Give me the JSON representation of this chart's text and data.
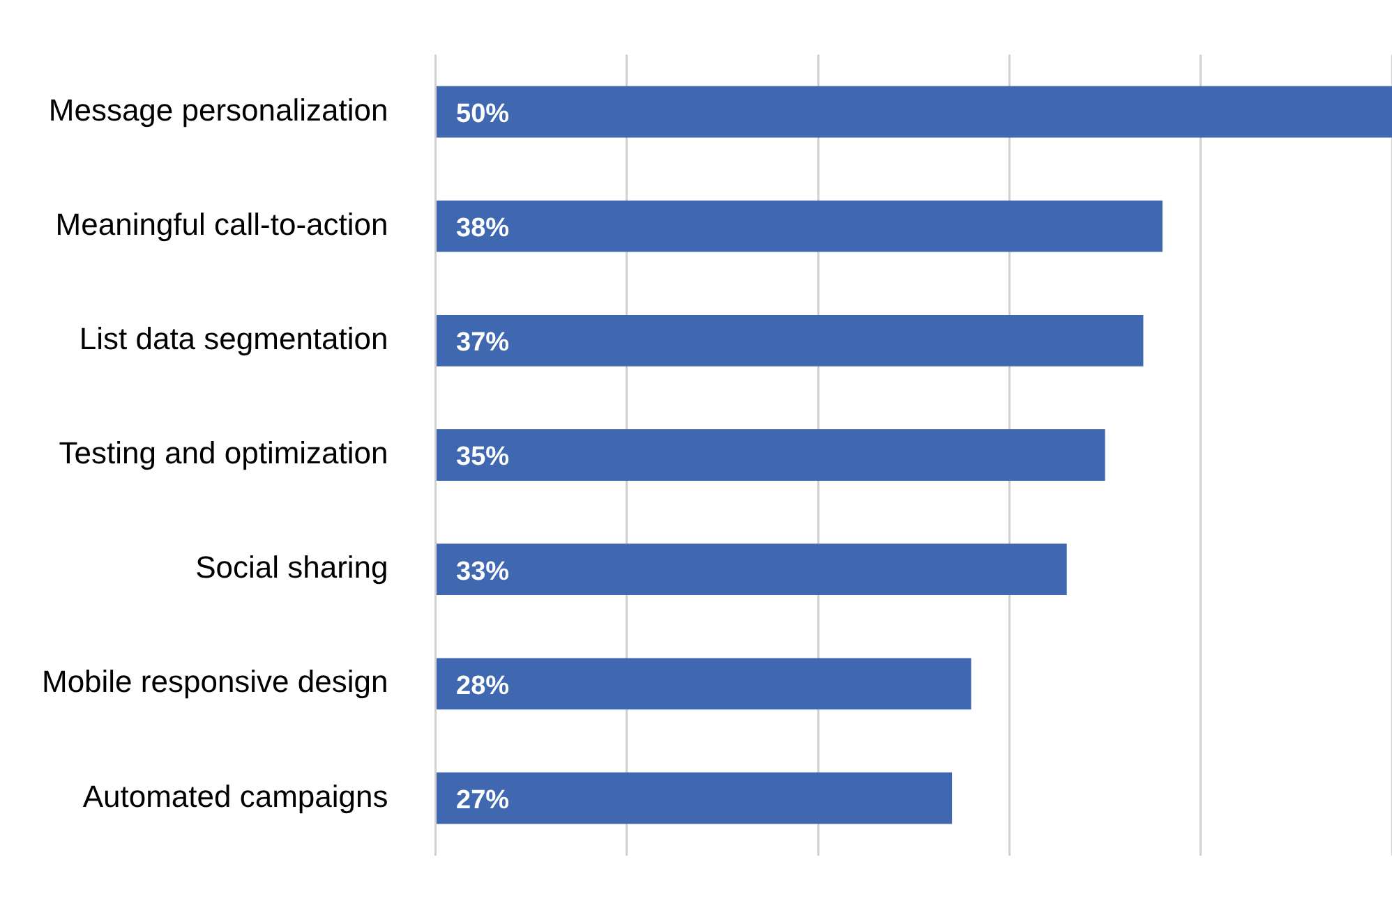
{
  "chart_data": {
    "type": "bar",
    "orientation": "horizontal",
    "categories": [
      "Message personalization",
      "Meaningful call-to-action",
      "List data segmentation",
      "Testing and optimization",
      "Social sharing",
      "Mobile responsive design",
      "Automated campaigns"
    ],
    "values": [
      50,
      38,
      37,
      35,
      33,
      28,
      27
    ],
    "value_labels": [
      "50%",
      "38%",
      "37%",
      "35%",
      "33%",
      "28%",
      "27%"
    ],
    "color": "#4068b0",
    "xlim": [
      0,
      50
    ],
    "xticks": [
      {
        "value": 0,
        "label": null
      },
      {
        "value": 10,
        "label": null
      },
      {
        "value": 20,
        "label": null
      },
      {
        "value": 30,
        "label": null
      },
      {
        "value": 40,
        "label": null
      },
      {
        "value": 50,
        "label": null
      }
    ],
    "grid": "x",
    "tick_labels": "y",
    "legend": false
  }
}
